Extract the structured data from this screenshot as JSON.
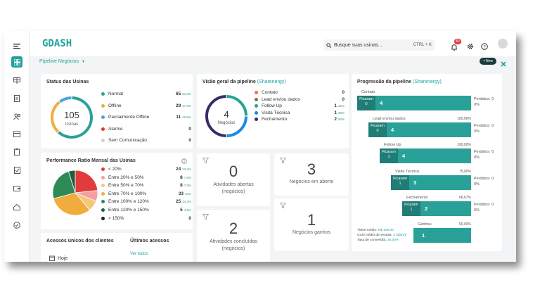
{
  "app": {
    "logo": "GDASH",
    "page_title": "Pipeline Negócios"
  },
  "search": {
    "placeholder": "Busque suas usinas...",
    "shortcut": "CTRL + K"
  },
  "header": {
    "notification_count": "40",
    "new_button": "New"
  },
  "colors": {
    "accent": "#1fa39c",
    "dark_accent": "#1f7d76",
    "danger": "#e23b3b"
  },
  "status_usinas": {
    "title": "Status das Usinas",
    "total": "105",
    "total_label": "Usinas",
    "items": [
      {
        "label": "Normal",
        "value": "65",
        "pct": "61,9%",
        "color": "#2aa198"
      },
      {
        "label": "Offline",
        "value": "29",
        "pct": "27,6%",
        "color": "#f0ad3e"
      },
      {
        "label": "Parcialmente Offline",
        "value": "11",
        "pct": "10,5%",
        "color": "#4aa3df"
      },
      {
        "label": "Alarme",
        "value": "0",
        "pct": "",
        "color": "#e23b3b"
      },
      {
        "label": "Sem Comunicação",
        "value": "0",
        "pct": "",
        "color": "#cfcfcf"
      }
    ]
  },
  "performance": {
    "title": "Performance Ratio Mensal das Usinas",
    "items": [
      {
        "label": "< 20%",
        "value": "24",
        "pct": "23,3%",
        "color": "#e23b3b"
      },
      {
        "label": "Entre 20% e 50%",
        "value": "8",
        "pct": "7,8%",
        "color": "#f2a0a0"
      },
      {
        "label": "Entre 50% e 70%",
        "value": "8",
        "pct": "7,8%",
        "color": "#f6c77a"
      },
      {
        "label": "Entre 70% e 100%",
        "value": "33",
        "pct": "32%",
        "color": "#f0ad3e"
      },
      {
        "label": "Entre 100% e 120%",
        "value": "25",
        "pct": "24,3%",
        "color": "#2e8b57"
      },
      {
        "label": "Entre 120% e 150%",
        "value": "5",
        "pct": "4,9%",
        "color": "#1f5f3f"
      },
      {
        "label": "> 150%",
        "value": "0",
        "pct": "",
        "color": "#222222"
      }
    ]
  },
  "acessos": {
    "title": "Acessos únicos dos clientes",
    "today": "Hoje",
    "last_title": "Últimos acessos",
    "see_all": "Ver todos"
  },
  "pipeline_overview": {
    "title": "Visão geral da pipeline",
    "company": "(Sharenergy)",
    "total": "4",
    "total_label": "Negócios",
    "items": [
      {
        "label": "Contato",
        "value": "0",
        "pct": "",
        "color": "#e8734a"
      },
      {
        "label": "Lead enviou dados",
        "value": "0",
        "pct": "",
        "color": "#8a6d3b"
      },
      {
        "label": "Follow Up",
        "value": "1",
        "pct": "25%",
        "color": "#2aa198"
      },
      {
        "label": "Visita Técnica",
        "value": "1",
        "pct": "25%",
        "color": "#1e88e5"
      },
      {
        "label": "Fechamento",
        "value": "2",
        "pct": "50%",
        "color": "#3b2a6b"
      }
    ]
  },
  "stats": {
    "abertas": {
      "value": "0",
      "label_1": "Atividades abertas",
      "label_2": "(negócios)"
    },
    "negocios_aberto": {
      "value": "3",
      "label": "Negócios em aberto"
    },
    "concluidas": {
      "value": "2",
      "label_1": "Atividades concluídas",
      "label_2": "(negócios)"
    },
    "ganhos": {
      "value": "1",
      "label": "Negócios ganhos"
    }
  },
  "funnel": {
    "title": "Progressão da pipeline",
    "company": "(Sharenergy)",
    "stay_label": "Ficaram",
    "lost_label": "Perdidos:",
    "stages": [
      {
        "name": "Contato",
        "pct": "",
        "stay": "0",
        "count": "4",
        "lost": "0",
        "lost_pct": "0%"
      },
      {
        "name": "Lead enviou dados",
        "pct": "100,00%",
        "stay": "0",
        "count": "4",
        "lost": "0",
        "lost_pct": "0%"
      },
      {
        "name": "Follow Up",
        "pct": "100,00%",
        "stay": "1",
        "count": "4",
        "lost": "0",
        "lost_pct": "0%"
      },
      {
        "name": "Visita Técnica",
        "pct": "75,00%",
        "stay": "1",
        "count": "3",
        "lost": "0",
        "lost_pct": "0%"
      },
      {
        "name": "Fechamento",
        "pct": "66,67%",
        "stay": "1",
        "count": "2",
        "lost": "0",
        "lost_pct": "0%"
      },
      {
        "name": "Ganhou",
        "pct": "50,00%",
        "stay": "",
        "count": "1",
        "lost": "",
        "lost_pct": ""
      }
    ],
    "ticket_label": "Ticket médio:",
    "ticket_value": "R$ 100,00",
    "cycle_label": "Ciclo médio de vendas:",
    "cycle_value": "3 (dia(s))",
    "conversion_label": "Taxa de conversão:",
    "conversion_value": "25,00%"
  }
}
